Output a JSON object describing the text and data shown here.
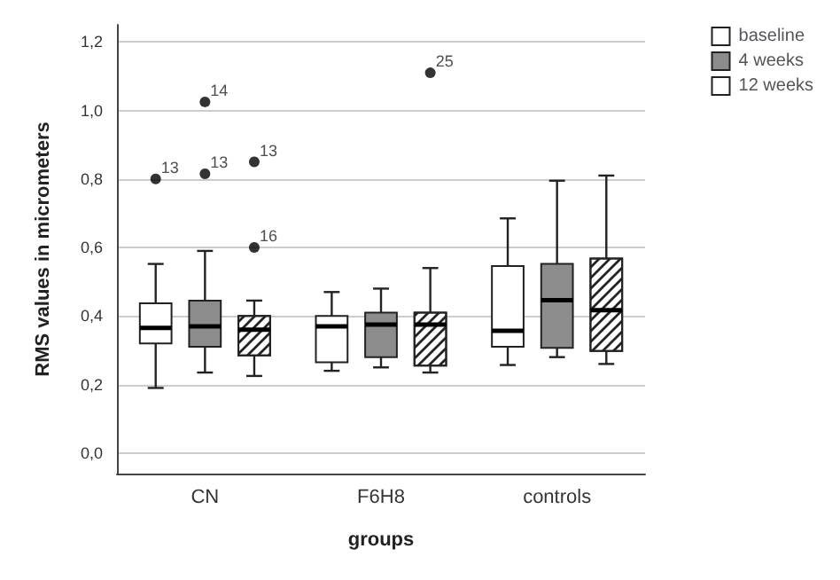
{
  "chart_data": {
    "type": "box",
    "xlabel": "groups",
    "ylabel": "RMS values in micrometers",
    "categories": [
      "CN",
      "F6H8",
      "controls"
    ],
    "series": [
      {
        "name": "baseline",
        "color": "#ffffff",
        "boxes": [
          {
            "low": 0.19,
            "q1": 0.32,
            "median": 0.365,
            "q3": 0.437,
            "high": 0.552,
            "outliers": [
              0.8
            ]
          },
          {
            "low": 0.24,
            "q1": 0.265,
            "median": 0.37,
            "q3": 0.4,
            "high": 0.47
          },
          {
            "low": 0.257,
            "q1": 0.31,
            "median": 0.357,
            "q3": 0.546,
            "high": 0.685
          }
        ]
      },
      {
        "name": "4 weeks",
        "color": "#8c8c8c",
        "boxes": [
          {
            "low": 0.235,
            "q1": 0.31,
            "median": 0.37,
            "q3": 0.445,
            "high": 0.59,
            "outliers": [
              1.025,
              0.815
            ]
          },
          {
            "low": 0.25,
            "q1": 0.28,
            "median": 0.375,
            "q3": 0.41,
            "high": 0.48
          },
          {
            "low": 0.28,
            "q1": 0.307,
            "median": 0.446,
            "q3": 0.552,
            "high": 0.795
          }
        ]
      },
      {
        "name": "12 weeks",
        "color": "#ffffff",
        "boxes": [
          {
            "low": 0.225,
            "q1": 0.285,
            "median": 0.36,
            "q3": 0.4,
            "high": 0.445,
            "outliers": [
              0.85,
              0.6
            ]
          },
          {
            "low": 0.235,
            "q1": 0.255,
            "median": 0.375,
            "q3": 0.41,
            "high": 0.54,
            "outliers": [
              1.11
            ]
          },
          {
            "low": 0.26,
            "q1": 0.298,
            "median": 0.417,
            "q3": 0.568,
            "high": 0.81
          }
        ]
      }
    ],
    "annotations": [
      "13",
      "14",
      "13",
      "13",
      "16",
      "25"
    ],
    "ylim": [
      -0.06,
      1.25
    ],
    "yticks": [
      {
        "value": 0,
        "label": "0,0"
      },
      {
        "value": 0.2,
        "label": "0,2"
      },
      {
        "value": 0.4,
        "label": "0,4"
      },
      {
        "value": 0.6,
        "label": "0,6"
      },
      {
        "value": 0.8,
        "label": "0,8"
      },
      {
        "value": 1.0,
        "label": "1,0"
      },
      {
        "value": 1.2,
        "label": "1,2"
      }
    ],
    "grid": "y",
    "legend": "top right"
  }
}
